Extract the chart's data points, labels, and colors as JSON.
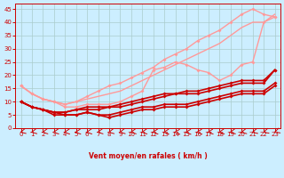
{
  "xlabel": "Vent moyen/en rafales ( km/h )",
  "bg_color": "#cceeff",
  "grid_color": "#aacccc",
  "xlim": [
    -0.5,
    23.5
  ],
  "ylim": [
    0,
    47
  ],
  "yticks": [
    0,
    5,
    10,
    15,
    20,
    25,
    30,
    35,
    40,
    45
  ],
  "xticks": [
    0,
    1,
    2,
    3,
    4,
    5,
    6,
    7,
    8,
    9,
    10,
    11,
    12,
    13,
    14,
    15,
    16,
    17,
    18,
    19,
    20,
    21,
    22,
    23
  ],
  "lines": [
    {
      "y": [
        16,
        13,
        11,
        10,
        9,
        10,
        11,
        12,
        13,
        14,
        16,
        18,
        20,
        22,
        24,
        26,
        28,
        30,
        32,
        35,
        38,
        40,
        40,
        43
      ],
      "color": "#ff9999",
      "lw": 1.0,
      "marker": false
    },
    {
      "y": [
        16,
        13,
        11,
        10,
        9,
        10,
        12,
        14,
        16,
        17,
        19,
        21,
        23,
        26,
        28,
        30,
        33,
        35,
        37,
        40,
        43,
        45,
        43,
        42
      ],
      "color": "#ff9999",
      "lw": 1.0,
      "marker": true
    },
    {
      "y": [
        16,
        13,
        11,
        10,
        8,
        8,
        9,
        9,
        9,
        10,
        12,
        14,
        22,
        23,
        25,
        24,
        22,
        21,
        18,
        20,
        24,
        25,
        40,
        42
      ],
      "color": "#ff9999",
      "lw": 1.0,
      "marker": true
    },
    {
      "y": [
        10,
        8,
        7,
        6,
        6,
        7,
        7,
        7,
        8,
        8,
        9,
        10,
        11,
        12,
        13,
        13,
        13,
        14,
        15,
        16,
        17,
        17,
        17,
        22
      ],
      "color": "#cc0000",
      "lw": 1.2,
      "marker": true
    },
    {
      "y": [
        10,
        8,
        7,
        6,
        6,
        7,
        8,
        8,
        8,
        9,
        10,
        11,
        12,
        13,
        13,
        14,
        14,
        15,
        16,
        17,
        18,
        18,
        18,
        22
      ],
      "color": "#cc0000",
      "lw": 1.2,
      "marker": true
    },
    {
      "y": [
        10,
        8,
        7,
        6,
        5,
        5,
        6,
        5,
        5,
        6,
        7,
        8,
        8,
        9,
        9,
        9,
        10,
        11,
        12,
        13,
        14,
        14,
        14,
        17
      ],
      "color": "#cc0000",
      "lw": 1.2,
      "marker": true
    },
    {
      "y": [
        10,
        8,
        7,
        5,
        5,
        5,
        6,
        5,
        4,
        5,
        6,
        7,
        7,
        8,
        8,
        8,
        9,
        10,
        11,
        12,
        13,
        13,
        13,
        16
      ],
      "color": "#cc0000",
      "lw": 1.2,
      "marker": true
    }
  ]
}
